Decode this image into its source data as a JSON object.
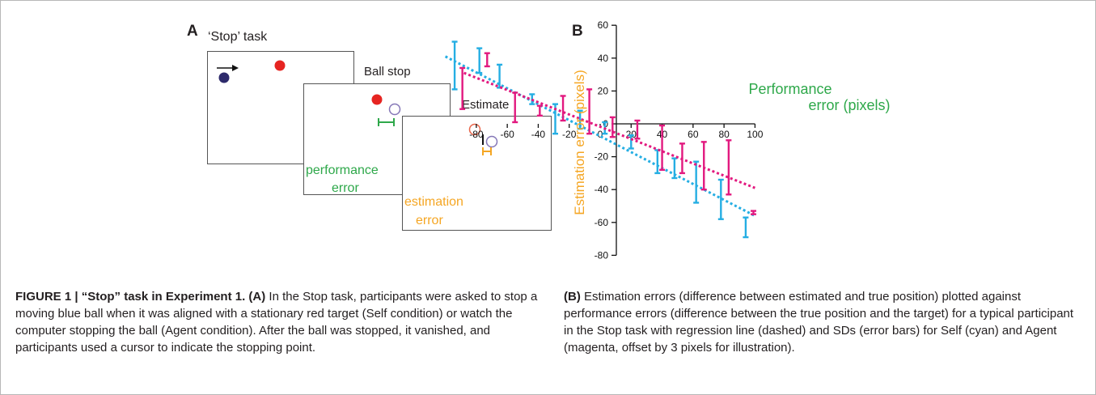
{
  "panel_a": {
    "letter": "A",
    "task_title": "‘Stop’ task",
    "ball_stop_label": "Ball stop",
    "estimate_label": "Estimate",
    "performance_label": [
      "performance",
      "error"
    ],
    "estimation_label": [
      "estimation",
      "error"
    ],
    "colors": {
      "blue_ball": "#2d2a6b",
      "red_ball": "#e62421",
      "green": "#2ea84a",
      "orange": "#f5a623",
      "purple": "#8577b7"
    }
  },
  "panel_b": {
    "letter": "B",
    "ylabel": "Estimation error (pixels)",
    "xlabel_lines": [
      "Performance",
      "error (pixels)"
    ],
    "colors": {
      "self": "#25aee3",
      "agent": "#e2197f",
      "ylabel": "#f5a623",
      "xlabel": "#2ea84a"
    }
  },
  "chart_data": {
    "type": "scatter",
    "title": "",
    "xlabel": "Performance error (pixels)",
    "ylabel": "Estimation error (pixels)",
    "xlim": [
      -100,
      100
    ],
    "ylim": [
      -80,
      60
    ],
    "x_ticks": [
      -80,
      -60,
      -40,
      -20,
      0,
      20,
      40,
      60,
      80,
      100
    ],
    "x_tick_labels": [
      "-80",
      "-60",
      "-40",
      "-20",
      "0",
      "20",
      "40",
      "60",
      "80",
      "100"
    ],
    "y_ticks": [
      60,
      40,
      20,
      0,
      -20,
      -40,
      -60,
      -80
    ],
    "y_tick_labels": [
      "60",
      "40",
      "20",
      "0",
      "-20",
      "-40",
      "-60",
      "-80"
    ],
    "grid": false,
    "series": [
      {
        "name": "Self",
        "color": "#25aee3",
        "points": [
          {
            "x": -94,
            "lo": 21,
            "hi": 50
          },
          {
            "x": -78,
            "lo": 31,
            "hi": 46
          },
          {
            "x": -65,
            "lo": 22,
            "hi": 36
          },
          {
            "x": -44,
            "lo": 12,
            "hi": 18
          },
          {
            "x": -29,
            "lo": -6,
            "hi": 12
          },
          {
            "x": -13,
            "lo": -3,
            "hi": 8
          },
          {
            "x": 3,
            "lo": -6,
            "hi": 1
          },
          {
            "x": 20,
            "lo": -15,
            "hi": -7
          },
          {
            "x": 37,
            "lo": -30,
            "hi": -16
          },
          {
            "x": 48,
            "lo": -33,
            "hi": -21
          },
          {
            "x": 62,
            "lo": -48,
            "hi": -23
          },
          {
            "x": 78,
            "lo": -58,
            "hi": -34
          },
          {
            "x": 94,
            "lo": -69,
            "hi": -57
          }
        ],
        "regression": {
          "x": [
            -100,
            100
          ],
          "y": [
            41,
            -56
          ]
        }
      },
      {
        "name": "Agent",
        "color": "#e2197f",
        "points": [
          {
            "x": -89,
            "lo": 9,
            "hi": 34
          },
          {
            "x": -73,
            "lo": 35,
            "hi": 43
          },
          {
            "x": -55,
            "lo": 1,
            "hi": 19
          },
          {
            "x": -39,
            "lo": 5,
            "hi": 11
          },
          {
            "x": -24,
            "lo": 2,
            "hi": 17
          },
          {
            "x": -7,
            "lo": -6,
            "hi": 21
          },
          {
            "x": 8,
            "lo": -8,
            "hi": 4
          },
          {
            "x": 24,
            "lo": -9,
            "hi": 2
          },
          {
            "x": 40,
            "lo": -28,
            "hi": -1
          },
          {
            "x": 53,
            "lo": -30,
            "hi": -12
          },
          {
            "x": 67,
            "lo": -40,
            "hi": -11
          },
          {
            "x": 83,
            "lo": -43,
            "hi": -10
          },
          {
            "x": 99,
            "lo": -55,
            "hi": -53
          }
        ],
        "regression": {
          "x": [
            -88,
            100
          ],
          "y": [
            31,
            -39
          ]
        }
      }
    ]
  },
  "caption_a": {
    "label": "FIGURE 1 | “Stop” task in Experiment 1. (A)",
    "text": " In the Stop task, participants were asked to stop a moving blue ball when it was aligned with a stationary red target (Self condition) or watch the computer stopping the ball (Agent condition). After the ball was stopped, it vanished, and participants used a cursor to indicate the stopping point."
  },
  "caption_b": {
    "label": "(B)",
    "text": " Estimation errors (difference between estimated and true position) plotted against performance errors (difference between the true position and the target) for a typical participant in the Stop task with regression line (dashed) and SDs (error bars) for Self (cyan) and Agent (magenta, offset by 3 pixels for illustration)."
  }
}
